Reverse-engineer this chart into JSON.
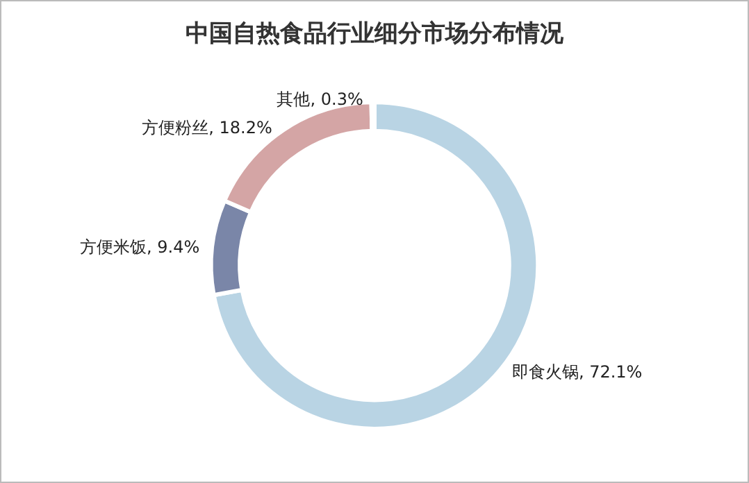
{
  "chart_data": {
    "type": "donut",
    "title": "中国自热食品行业细分市场分布情况",
    "categories": [
      "即食火锅",
      "方便米饭",
      "方便粉丝",
      "其他"
    ],
    "values": [
      72.1,
      9.4,
      18.2,
      0.3
    ],
    "colors": [
      "#b9d4e4",
      "#7a86a8",
      "#d4a5a5",
      "#c8d8e6"
    ],
    "value_labels": [
      "72.1%",
      "9.4%",
      "18.2%",
      "0.3%"
    ],
    "legend": false
  }
}
